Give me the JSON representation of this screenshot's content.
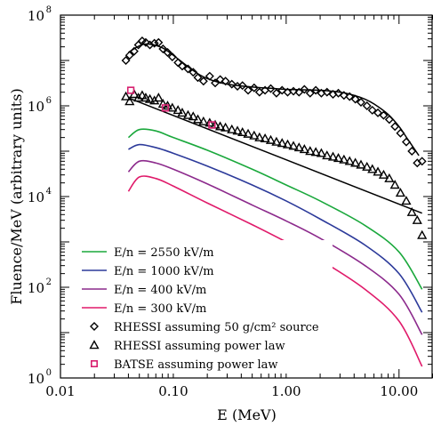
{
  "chart_data": {
    "type": "line",
    "title": "",
    "xlabel": "E (MeV)",
    "ylabel": "Fluence/MeV (arbitrary units)",
    "xscale": "log",
    "yscale": "log",
    "xlim": [
      0.01,
      20
    ],
    "ylim": [
      1,
      100000000
    ],
    "grid": false,
    "legend_position": "bottom-left",
    "x_ticks": [
      {
        "value": 0.01,
        "label": "0.01"
      },
      {
        "value": 0.1,
        "label": "0.10"
      },
      {
        "value": 1,
        "label": "1.00"
      },
      {
        "value": 10,
        "label": "10.00"
      }
    ],
    "y_ticks": [
      {
        "value": 1,
        "base": "10",
        "exp": "0"
      },
      {
        "value": 100,
        "base": "10",
        "exp": "2"
      },
      {
        "value": 10000,
        "base": "10",
        "exp": "4"
      },
      {
        "value": 1000000,
        "base": "10",
        "exp": "6"
      },
      {
        "value": 100000000,
        "base": "10",
        "exp": "8"
      }
    ],
    "series": [
      {
        "name": "E/n = 2550 kV/m",
        "kind": "line",
        "color": "#1aa83c",
        "x": [
          0.04,
          0.05,
          0.07,
          0.1,
          0.2,
          0.5,
          1,
          2,
          5,
          10,
          16
        ],
        "y": [
          200000,
          300000,
          280000,
          200000,
          105000,
          40000,
          18000,
          8000,
          2300,
          600,
          90
        ]
      },
      {
        "name": "E/n = 1000 kV/m",
        "kind": "line",
        "color": "#2c3a9a",
        "x": [
          0.04,
          0.05,
          0.07,
          0.1,
          0.2,
          0.5,
          1,
          2,
          5,
          10,
          16
        ],
        "y": [
          110000,
          140000,
          120000,
          90000,
          47000,
          18000,
          8000,
          3200,
          850,
          200,
          28
        ]
      },
      {
        "name": "E/n = 400 kV/m",
        "kind": "line",
        "color": "#8c2a8c",
        "x": [
          0.04,
          0.05,
          0.07,
          0.1,
          0.2,
          0.5,
          1,
          2,
          5,
          10,
          16
        ],
        "y": [
          35000,
          60000,
          55000,
          40000,
          19000,
          6500,
          2900,
          1200,
          300,
          70,
          9
        ]
      },
      {
        "name": "E/n = 300 kV/m",
        "kind": "line",
        "color": "#e01a6a",
        "x": [
          0.04,
          0.05,
          0.07,
          0.1,
          0.2,
          0.5,
          1,
          2,
          5,
          10,
          16
        ],
        "y": [
          13000,
          27000,
          25000,
          17000,
          7200,
          2400,
          1000,
          400,
          90,
          18,
          1.8
        ]
      },
      {
        "name": "RHESSI assuming 50 g/cm² source",
        "kind": "markers",
        "marker": "diamond",
        "color": "#000000",
        "x": [
          0.038,
          0.041,
          0.045,
          0.049,
          0.053,
          0.057,
          0.062,
          0.068,
          0.074,
          0.081,
          0.089,
          0.098,
          0.11,
          0.12,
          0.135,
          0.15,
          0.165,
          0.185,
          0.21,
          0.235,
          0.26,
          0.29,
          0.33,
          0.37,
          0.41,
          0.46,
          0.52,
          0.58,
          0.65,
          0.73,
          0.82,
          0.92,
          1.03,
          1.16,
          1.3,
          1.45,
          1.63,
          1.83,
          2.05,
          2.3,
          2.6,
          2.9,
          3.25,
          3.65,
          4.1,
          4.6,
          5.2,
          5.8,
          6.5,
          7.3,
          8.2,
          9.2,
          10.3,
          11.6,
          13,
          14.5,
          16
        ],
        "y": [
          10000000,
          13000000,
          16000000,
          22000000,
          27000000,
          25000000,
          22000000,
          24000000,
          25000000,
          18000000,
          15000000,
          12000000,
          9000000,
          7500000,
          6500000,
          5500000,
          4200000,
          3500000,
          4500000,
          3200000,
          3800000,
          3500000,
          3000000,
          2700000,
          2800000,
          2200000,
          2500000,
          2000000,
          2200000,
          2400000,
          1900000,
          2200000,
          2000000,
          2100000,
          2000000,
          2300000,
          1900000,
          2200000,
          1900000,
          2000000,
          1800000,
          1900000,
          1700000,
          1600000,
          1400000,
          1200000,
          1000000,
          800000,
          700000,
          620000,
          500000,
          350000,
          250000,
          160000,
          100000,
          55000,
          60000
        ]
      },
      {
        "name": "RHESSI assuming power law",
        "kind": "markers",
        "marker": "triangle",
        "color": "#000000",
        "x": [
          0.038,
          0.041,
          0.045,
          0.049,
          0.053,
          0.057,
          0.062,
          0.068,
          0.074,
          0.081,
          0.089,
          0.098,
          0.11,
          0.12,
          0.135,
          0.15,
          0.165,
          0.185,
          0.21,
          0.235,
          0.26,
          0.29,
          0.33,
          0.37,
          0.41,
          0.46,
          0.52,
          0.58,
          0.65,
          0.73,
          0.82,
          0.92,
          1.03,
          1.16,
          1.3,
          1.45,
          1.63,
          1.83,
          2.05,
          2.3,
          2.6,
          2.9,
          3.25,
          3.65,
          4.1,
          4.6,
          5.2,
          5.8,
          6.5,
          7.3,
          8.2,
          9.2,
          10.3,
          11.6,
          13,
          14.5,
          16
        ],
        "y": [
          1600000,
          1250000,
          1800000,
          1500000,
          1700000,
          1500000,
          1400000,
          1300000,
          1500000,
          1100000,
          1000000,
          900000,
          800000,
          700000,
          620000,
          580000,
          500000,
          450000,
          420000,
          380000,
          350000,
          330000,
          300000,
          280000,
          260000,
          240000,
          220000,
          200000,
          190000,
          175000,
          160000,
          150000,
          140000,
          130000,
          120000,
          110000,
          100000,
          95000,
          90000,
          80000,
          75000,
          70000,
          65000,
          60000,
          55000,
          50000,
          45000,
          40000,
          35000,
          30000,
          25000,
          18000,
          12000,
          8000,
          4500,
          3000,
          1400
        ]
      },
      {
        "name": "BATSE assuming power law",
        "kind": "markers",
        "marker": "square",
        "color": "#d81e6e",
        "x": [
          0.042,
          0.085,
          0.22
        ],
        "y": [
          2200000,
          900000,
          380000
        ]
      }
    ],
    "fit_lines": [
      {
        "series": "RHESSI assuming 50 g/cm² source",
        "x": [
          0.04,
          0.05,
          0.06,
          0.08,
          0.1,
          0.15,
          0.2,
          0.3,
          0.5,
          0.8,
          1,
          2,
          3,
          4,
          5,
          6,
          8,
          10,
          12,
          15
        ],
        "y": [
          15000000,
          21000000,
          23000000,
          19000000,
          13000000,
          6000000,
          4000000,
          3000000,
          2600000,
          2400000,
          2300000,
          2200000,
          2000000,
          1700000,
          1400000,
          1100000,
          650000,
          350000,
          180000,
          80000
        ]
      },
      {
        "series": "RHESSI assuming power law",
        "x": [
          0.04,
          16
        ],
        "y": [
          1500000,
          4300
        ]
      }
    ]
  }
}
